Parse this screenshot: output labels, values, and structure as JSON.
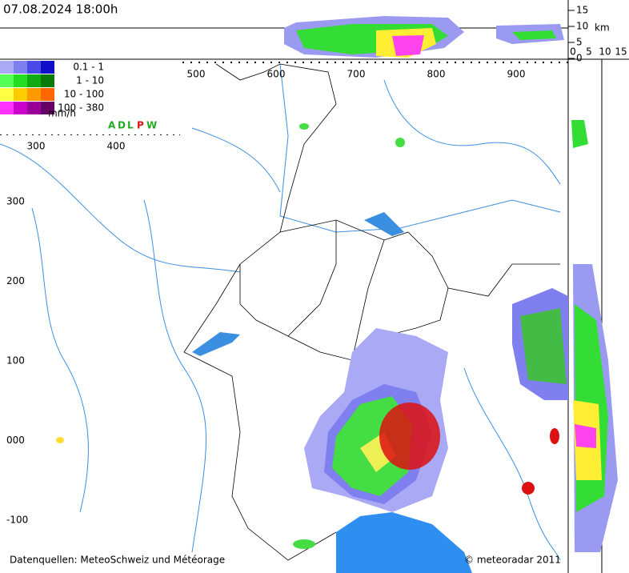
{
  "timestamp": "07.08.2024 18:00h",
  "height_axis": {
    "ticks": [
      "15",
      "10",
      "5",
      "0"
    ],
    "unit": "km"
  },
  "side_axis": {
    "ticks": [
      "0",
      "5",
      "10",
      "15"
    ]
  },
  "legend": {
    "rows": [
      {
        "label": "0.1 -    1",
        "colors": [
          "#a9a9f5",
          "#7f7ff0",
          "#4a4ae8",
          "#1010c8"
        ]
      },
      {
        "label": "1 -   10",
        "colors": [
          "#55ff55",
          "#22dd22",
          "#11aa11",
          "#0a7a0a"
        ]
      },
      {
        "label": "10 - 100",
        "colors": [
          "#ffff44",
          "#ffcc00",
          "#ff9900",
          "#ff6600"
        ]
      },
      {
        "label": "100 - 380",
        "colors": [
          "#ff33ff",
          "#cc00cc",
          "#990099",
          "#660066"
        ]
      }
    ],
    "unit": "mm/h"
  },
  "sensors": [
    {
      "letter": "A",
      "color": "#22aa22"
    },
    {
      "letter": "D",
      "color": "#22aa22"
    },
    {
      "letter": "L",
      "color": "#22aa22"
    },
    {
      "letter": "P",
      "color": "#dd1111"
    },
    {
      "letter": "W",
      "color": "#22aa22"
    }
  ],
  "x_axis": {
    "labels": [
      "500",
      "600",
      "700",
      "800",
      "900"
    ],
    "left_labels": [
      "300",
      "400"
    ]
  },
  "y_axis": {
    "labels": [
      "300",
      "200",
      "100",
      "000",
      "-100"
    ]
  },
  "footer": {
    "sources": "Datenquellen: MeteoSchweiz und Météorage",
    "copyright": "© meteoradar 2011"
  }
}
